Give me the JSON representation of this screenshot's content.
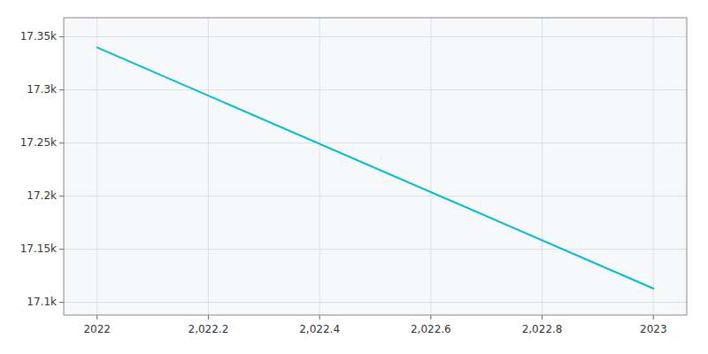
{
  "chart_data": {
    "type": "line",
    "x": [
      2022,
      2023
    ],
    "values": [
      17340,
      17113
    ],
    "color": "#00bcd4",
    "xlim": [
      2021.94,
      2023.06
    ],
    "ylim": [
      17088,
      17368
    ],
    "xticks": [
      2022,
      {
        "value": 2022.2,
        "label": "2,022.2"
      },
      {
        "value": 2022.4,
        "label": "2,022.4"
      },
      {
        "value": 2022.6,
        "label": "2,022.6"
      },
      {
        "value": 2022.8,
        "label": "2,022.8"
      },
      2023
    ],
    "yticks": [
      {
        "value": 17100,
        "label": "17.1k"
      },
      {
        "value": 17150,
        "label": "17.15k"
      },
      {
        "value": 17200,
        "label": "17.2k"
      },
      {
        "value": 17250,
        "label": "17.25k"
      },
      {
        "value": 17300,
        "label": "17.3k"
      },
      {
        "value": 17350,
        "label": "17.35k"
      }
    ],
    "grid": true
  }
}
